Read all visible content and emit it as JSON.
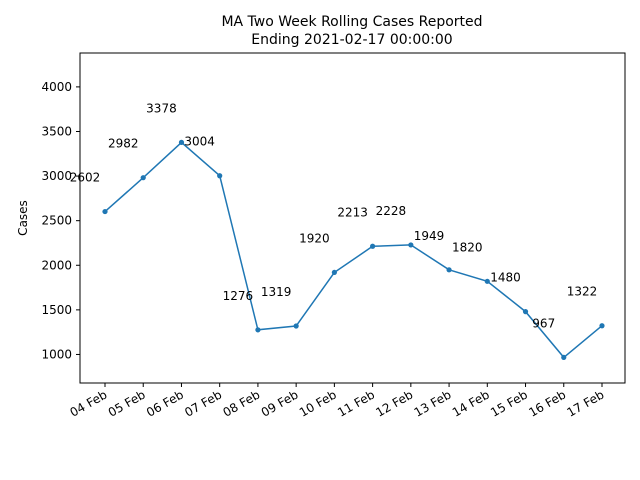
{
  "chart_data": {
    "type": "line",
    "title": "MA Two Week Rolling Cases Reported",
    "subtitle": "Ending 2021-02-17 00:00:00",
    "xlabel": "",
    "ylabel": "Cases",
    "categories": [
      "04 Feb",
      "05 Feb",
      "06 Feb",
      "07 Feb",
      "08 Feb",
      "09 Feb",
      "10 Feb",
      "11 Feb",
      "12 Feb",
      "13 Feb",
      "14 Feb",
      "15 Feb",
      "16 Feb",
      "17 Feb"
    ],
    "series": [
      {
        "values": [
          2602,
          2982,
          3378,
          3004,
          1276,
          1319,
          1920,
          2213,
          2228,
          1949,
          1820,
          1480,
          967,
          1322
        ],
        "color": "#1f77b4"
      }
    ],
    "data_labels": [
      "2602",
      "2982",
      "3378",
      "3004",
      "1276",
      "1319",
      "1920",
      "2213",
      "2228",
      "1949",
      "1820",
      "1480",
      "967",
      "1322"
    ],
    "yticks": [
      1000,
      1500,
      2000,
      2500,
      3000,
      3500,
      4000
    ],
    "ytick_labels": [
      "1000",
      "1500",
      "2000",
      "2500",
      "3000",
      "3500",
      "4000"
    ],
    "ylim": [
      680,
      4380
    ],
    "grid": false,
    "legend": "none"
  }
}
